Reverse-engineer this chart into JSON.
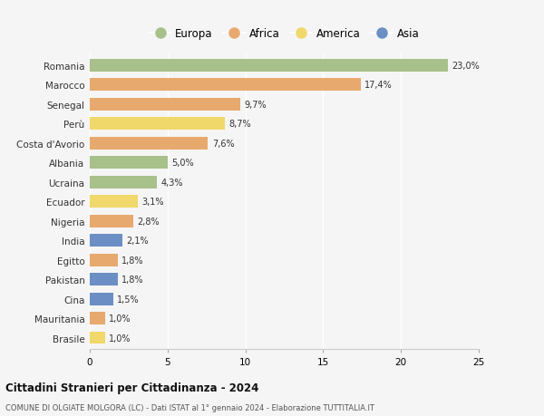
{
  "countries": [
    "Romania",
    "Marocco",
    "Senegal",
    "Perù",
    "Costa d'Avorio",
    "Albania",
    "Ucraina",
    "Ecuador",
    "Nigeria",
    "India",
    "Egitto",
    "Pakistan",
    "Cina",
    "Mauritania",
    "Brasile"
  ],
  "values": [
    23.0,
    17.4,
    9.7,
    8.7,
    7.6,
    5.0,
    4.3,
    3.1,
    2.8,
    2.1,
    1.8,
    1.8,
    1.5,
    1.0,
    1.0
  ],
  "labels": [
    "23,0%",
    "17,4%",
    "9,7%",
    "8,7%",
    "7,6%",
    "5,0%",
    "4,3%",
    "3,1%",
    "2,8%",
    "2,1%",
    "1,8%",
    "1,8%",
    "1,5%",
    "1,0%",
    "1,0%"
  ],
  "continents": [
    "Europa",
    "Africa",
    "Africa",
    "America",
    "Africa",
    "Europa",
    "Europa",
    "America",
    "Africa",
    "Asia",
    "Africa",
    "Asia",
    "Asia",
    "Africa",
    "America"
  ],
  "colors": {
    "Europa": "#a8c08a",
    "Africa": "#e8a96e",
    "America": "#f0d86a",
    "Asia": "#6b8fc4"
  },
  "legend_order": [
    "Europa",
    "Africa",
    "America",
    "Asia"
  ],
  "bg_color": "#f5f5f5",
  "grid_color": "#e8e8e8",
  "title": "Cittadini Stranieri per Cittadinanza - 2024",
  "subtitle": "COMUNE DI OLGIATE MOLGORA (LC) - Dati ISTAT al 1° gennaio 2024 - Elaborazione TUTTITALIA.IT",
  "xlim": [
    0,
    25
  ],
  "xticks": [
    0,
    5,
    10,
    15,
    20,
    25
  ]
}
